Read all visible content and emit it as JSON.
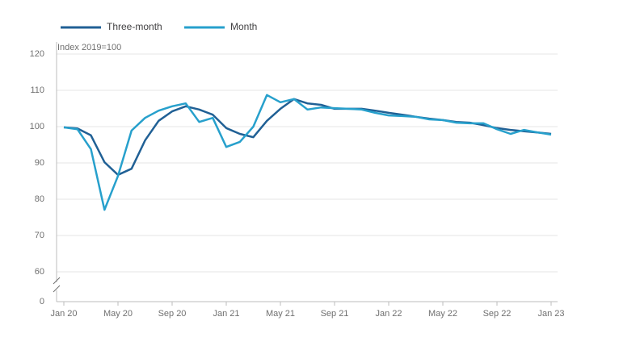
{
  "chart_data": {
    "type": "line",
    "y_axis_label": "Index 2019=100",
    "categories": [
      "Jan 20",
      null,
      null,
      null,
      "May 20",
      null,
      null,
      null,
      "Sep 20",
      null,
      null,
      null,
      "Jan 21",
      null,
      null,
      null,
      "May 21",
      null,
      null,
      null,
      "Sep 21",
      null,
      null,
      null,
      "Jan 22",
      null,
      null,
      null,
      "May 22",
      null,
      null,
      null,
      "Sep 22",
      null,
      null,
      null,
      "Jan 23"
    ],
    "series": [
      {
        "name": "Three-month",
        "color": "#206095",
        "values": [
          99.8,
          99.5,
          97.6,
          90.2,
          86.7,
          88.4,
          96.2,
          101.6,
          104.2,
          105.6,
          104.7,
          103.3,
          99.6,
          98.0,
          97.1,
          101.6,
          104.9,
          107.6,
          106.4,
          106.0,
          104.9,
          104.9,
          104.9,
          104.4,
          103.8,
          103.3,
          102.7,
          102.2,
          101.8,
          101.3,
          101.1,
          100.4,
          99.6,
          99.1,
          98.7,
          98.4,
          98.0
        ]
      },
      {
        "name": "Month",
        "color": "#27a0cc",
        "values": [
          99.8,
          99.3,
          93.8,
          77.1,
          86.4,
          98.9,
          102.4,
          104.4,
          105.6,
          106.4,
          101.3,
          102.4,
          94.4,
          95.8,
          100.0,
          108.7,
          106.7,
          107.6,
          104.7,
          105.3,
          105.1,
          104.9,
          104.7,
          103.8,
          103.1,
          102.9,
          102.7,
          102.0,
          101.8,
          101.1,
          100.9,
          100.9,
          99.3,
          98.0,
          99.1,
          98.4,
          97.8
        ]
      }
    ],
    "ylim": [
      0,
      120
    ],
    "axis_break": [
      0,
      60
    ],
    "yticks": [
      0,
      60,
      70,
      80,
      90,
      100,
      110,
      120
    ],
    "grid": true
  }
}
